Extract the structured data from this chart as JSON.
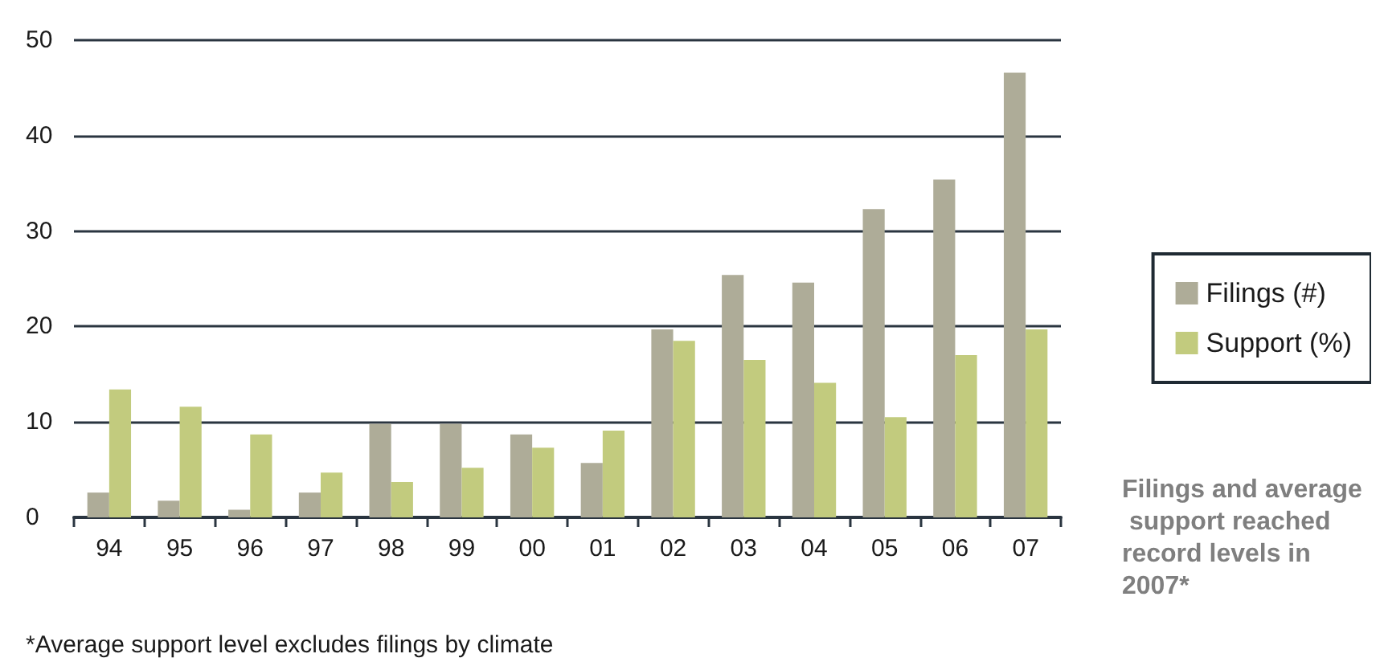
{
  "chart_data": {
    "type": "bar",
    "title": "Filings and average support reached record levels in 2007*",
    "categories": [
      "94",
      "95",
      "96",
      "97",
      "98",
      "99",
      "00",
      "01",
      "02",
      "03",
      "04",
      "05",
      "06",
      "07"
    ],
    "series": [
      {
        "name": "Filings (#)",
        "color": "#aeac98",
        "values": [
          2.6,
          1.75,
          0.8,
          2.6,
          9.8,
          9.8,
          8.7,
          5.7,
          19.7,
          25.4,
          24.6,
          32.3,
          35.4,
          46.6
        ]
      },
      {
        "name": "Support (%)",
        "color": "#c2cb7e",
        "values": [
          13.4,
          11.6,
          8.7,
          4.7,
          3.7,
          5.2,
          7.3,
          9.1,
          18.5,
          16.5,
          14.1,
          10.5,
          17.0,
          19.7
        ]
      }
    ],
    "ylim": [
      0,
      50
    ],
    "yticks": [
      0,
      10,
      20,
      30,
      40,
      50
    ],
    "grid": "y",
    "legend": "right",
    "annotations": [
      "*Average support level excludes filings by climate"
    ]
  }
}
